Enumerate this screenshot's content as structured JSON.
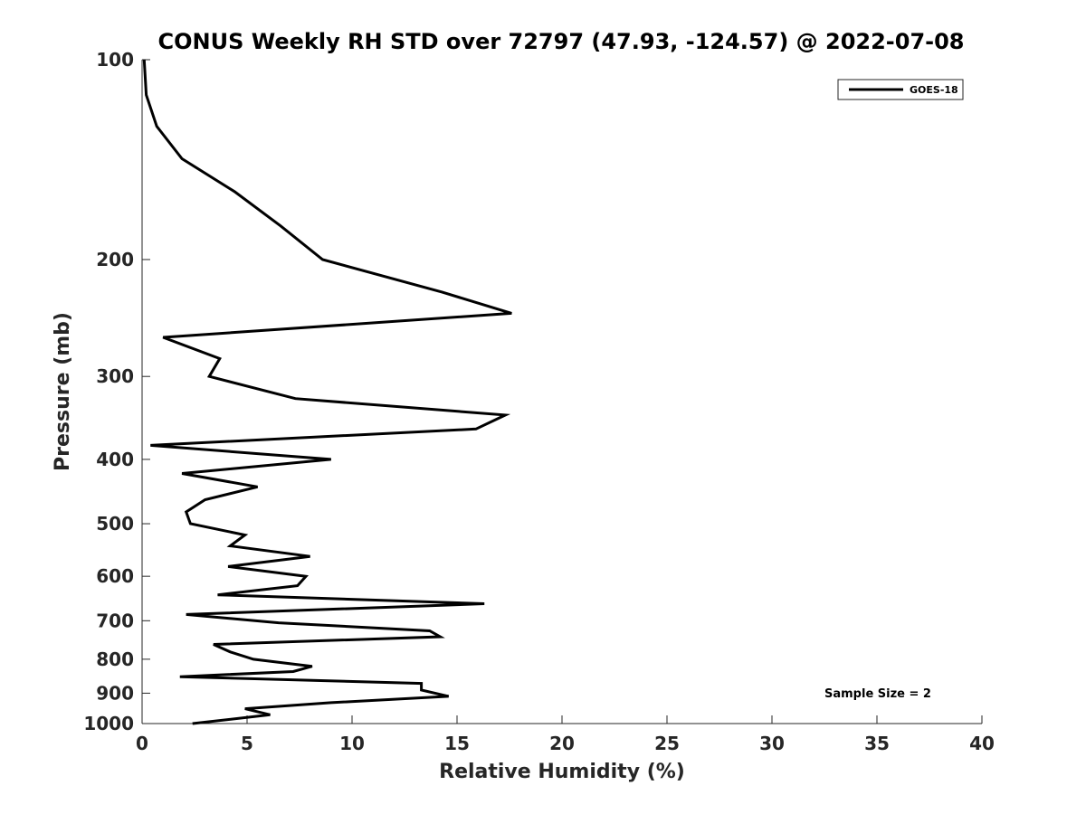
{
  "chart_data": {
    "type": "line",
    "title": "CONUS Weekly RH STD over 72797 (47.93, -124.57) @ 2022-07-08",
    "xlabel": "Relative Humidity (%)",
    "ylabel": "Pressure (mb)",
    "xlim": [
      0,
      40
    ],
    "ylim": [
      1000,
      100
    ],
    "y_scale": "log",
    "y_direction": "reversed",
    "grid": false,
    "legend_position": "top-right",
    "xticks": [
      0,
      5,
      10,
      15,
      20,
      25,
      30,
      35,
      40
    ],
    "xtick_labels": [
      "0",
      "5",
      "10",
      "15",
      "20",
      "25",
      "30",
      "35",
      "40"
    ],
    "yticks": [
      100,
      200,
      300,
      400,
      500,
      600,
      700,
      800,
      900,
      1000
    ],
    "ytick_labels": [
      "100",
      "200",
      "300",
      "400",
      "500",
      "600",
      "700",
      "800",
      "900",
      "1000"
    ],
    "series": [
      {
        "name": "GOES-18",
        "color": "#000000",
        "points": [
          [
            0.1,
            100
          ],
          [
            0.2,
            113
          ],
          [
            0.7,
            126
          ],
          [
            1.9,
            141
          ],
          [
            4.4,
            158
          ],
          [
            6.6,
            178
          ],
          [
            8.6,
            200
          ],
          [
            14.3,
            224
          ],
          [
            17.6,
            241
          ],
          [
            1.0,
            262
          ],
          [
            3.7,
            282
          ],
          [
            3.2,
            300
          ],
          [
            7.3,
            324
          ],
          [
            17.3,
            343
          ],
          [
            15.9,
            360
          ],
          [
            0.4,
            381
          ],
          [
            9.0,
            400
          ],
          [
            1.9,
            420
          ],
          [
            5.5,
            440
          ],
          [
            3.0,
            460
          ],
          [
            2.1,
            480
          ],
          [
            2.3,
            500
          ],
          [
            4.9,
            520
          ],
          [
            4.2,
            540
          ],
          [
            8.0,
            560
          ],
          [
            4.1,
            580
          ],
          [
            7.8,
            600
          ],
          [
            7.4,
            620
          ],
          [
            3.6,
            640
          ],
          [
            16.3,
            660
          ],
          [
            2.1,
            685
          ],
          [
            6.5,
            705
          ],
          [
            13.7,
            725
          ],
          [
            14.2,
            740
          ],
          [
            3.4,
            760
          ],
          [
            4.2,
            780
          ],
          [
            5.3,
            800
          ],
          [
            8.1,
            820
          ],
          [
            7.2,
            835
          ],
          [
            1.8,
            850
          ],
          [
            13.3,
            870
          ],
          [
            13.3,
            890
          ],
          [
            14.6,
            910
          ],
          [
            9.0,
            930
          ],
          [
            4.9,
            950
          ],
          [
            6.1,
            970
          ],
          [
            2.4,
            1000
          ]
        ]
      }
    ],
    "annotations": [
      "Sample Size = 2"
    ]
  }
}
